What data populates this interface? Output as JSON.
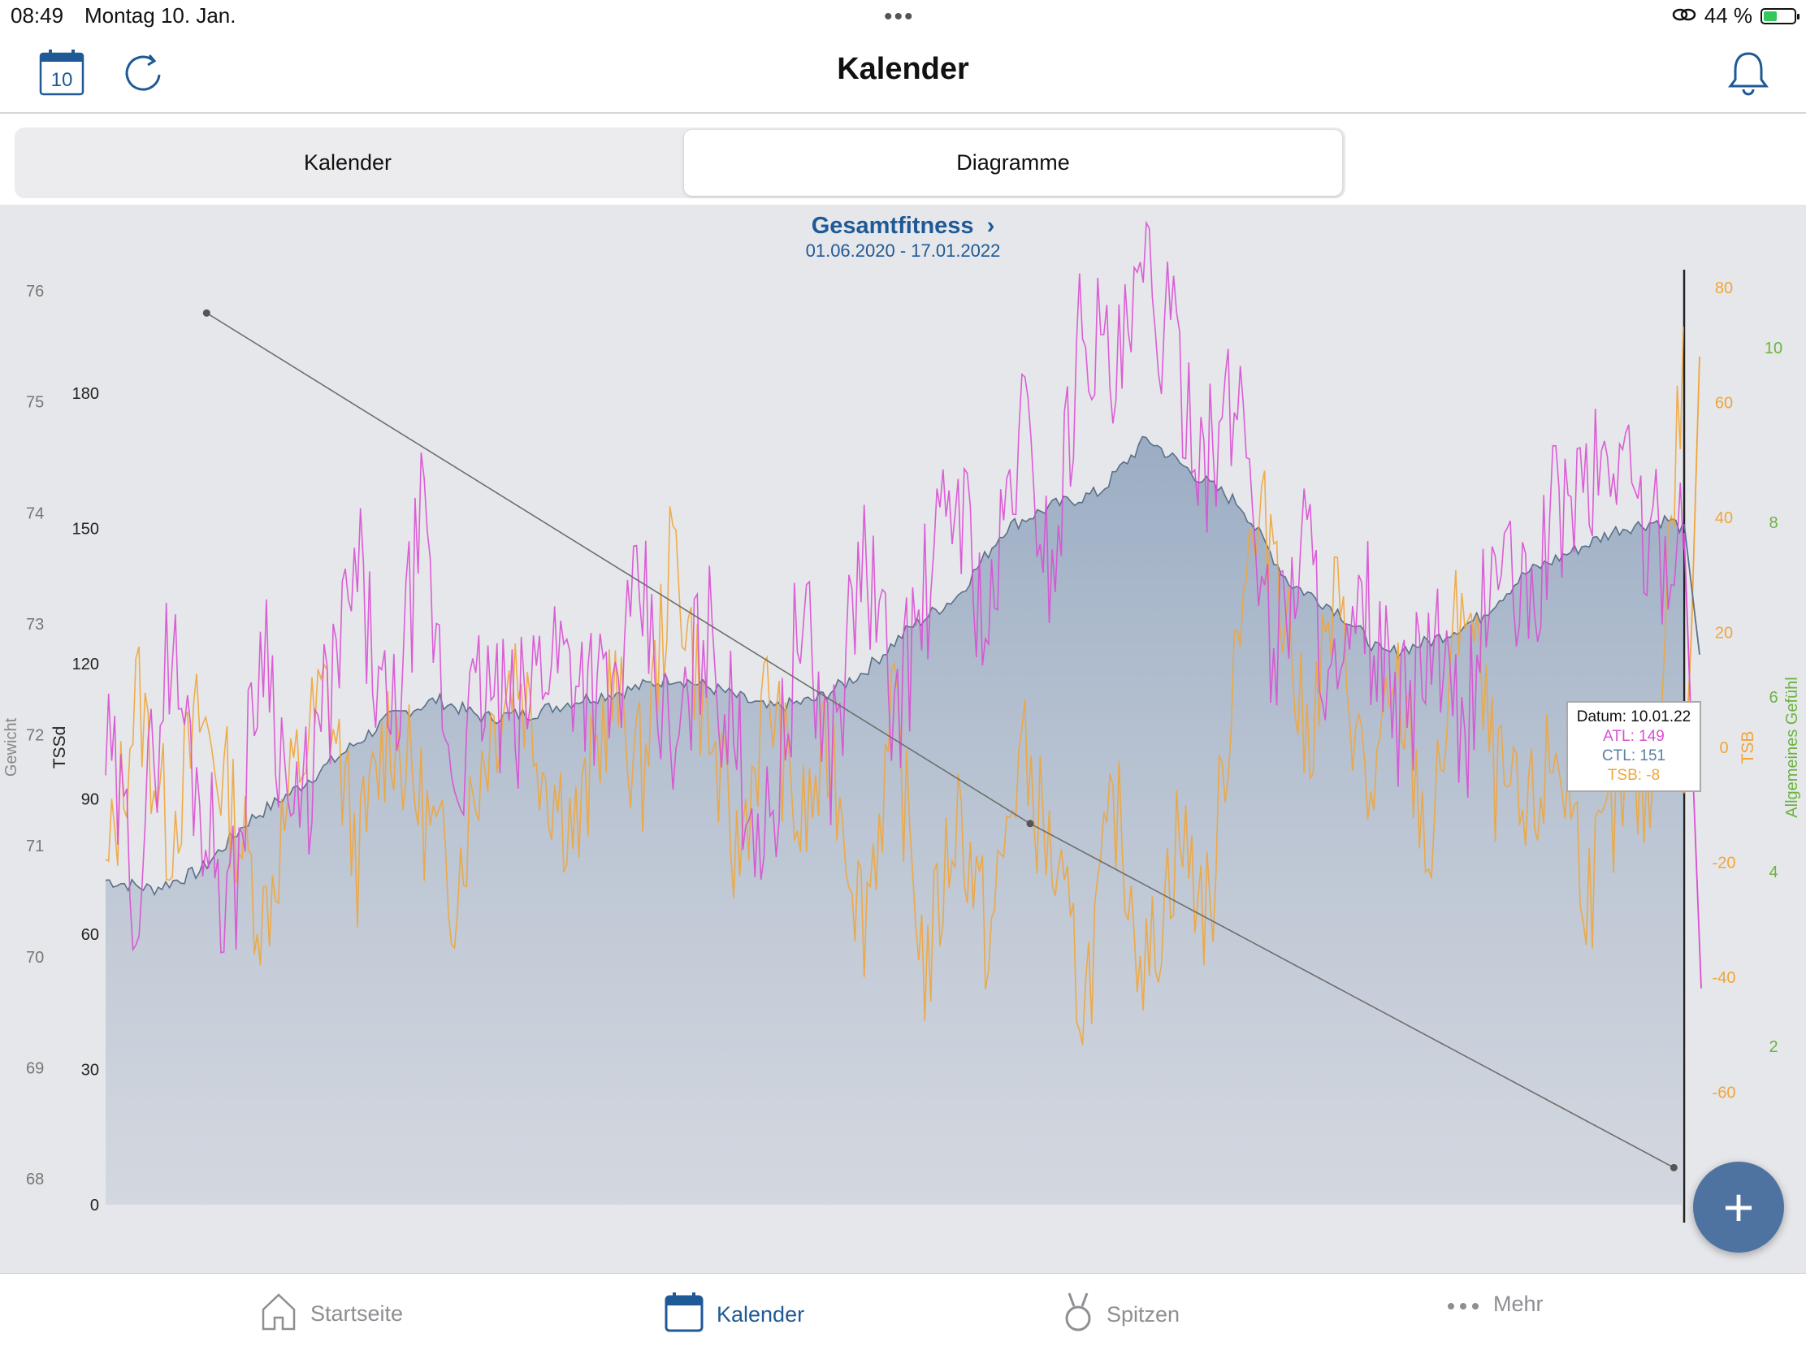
{
  "status_bar": {
    "time": "08:49",
    "date": "Montag 10. Jan.",
    "battery_text": "44 %",
    "battery_level": 0.44
  },
  "nav": {
    "title": "Kalender",
    "calendar_day": "10"
  },
  "segments": {
    "left": "Kalender",
    "right": "Diagramme",
    "selected": "Diagramme"
  },
  "chart_header": {
    "title": "Gesamtfitness",
    "date_range": "01.06.2020 - 17.01.2022"
  },
  "tooltip": {
    "date": "Datum: 10.01.22",
    "atl": "ATL: 149",
    "ctl": "CTL: 151",
    "tsb": "TSB: -8"
  },
  "fab": {
    "label": "+"
  },
  "tabs": [
    {
      "label": "Startseite",
      "icon": "home-icon"
    },
    {
      "label": "Kalender",
      "icon": "calendar-icon"
    },
    {
      "label": "Spitzen",
      "icon": "medal-icon"
    },
    {
      "label": "Mehr",
      "icon": "more-icon"
    }
  ],
  "colors": {
    "accent": "#1f5996",
    "atl": "#d94fd4",
    "ctl": "#5a7ea3",
    "tsb": "#f0a53a",
    "feeling": "#6bb33f",
    "weight": "#777777"
  },
  "chart_data": {
    "type": "line",
    "title": "Gesamtfitness",
    "subtitle": "01.06.2020 - 17.01.2022",
    "axes": {
      "weight": {
        "label": "Gewicht",
        "ticks": [
          "76",
          "75",
          "74",
          "73",
          "72",
          "71",
          "70",
          "69",
          "68"
        ],
        "range": [
          68,
          76
        ]
      },
      "tssd": {
        "label": "TSSd",
        "ticks": [
          "180",
          "150",
          "120",
          "90",
          "60",
          "30",
          "0"
        ],
        "range": [
          0,
          200
        ]
      },
      "tsb": {
        "label": "TSB",
        "ticks": [
          "80",
          "60",
          "40",
          "20",
          "0",
          "-20",
          "-40",
          "-60"
        ],
        "range": [
          -74,
          82
        ]
      },
      "feeling": {
        "label": "Allgemeines Gefühl",
        "ticks": [
          "10",
          "8",
          "6",
          "4",
          "2"
        ],
        "range": [
          0,
          10.7
        ]
      }
    },
    "x_range": [
      "01.06.2020",
      "17.01.2022"
    ],
    "series": [
      {
        "name": "CTL",
        "axis": "tssd",
        "style": "area",
        "x_frac": [
          0,
          0.03,
          0.06,
          0.09,
          0.12,
          0.15,
          0.18,
          0.21,
          0.24,
          0.27,
          0.3,
          0.33,
          0.36,
          0.39,
          0.42,
          0.45,
          0.48,
          0.51,
          0.54,
          0.57,
          0.6,
          0.63,
          0.66,
          0.69,
          0.72,
          0.75,
          0.78,
          0.81,
          0.84,
          0.87,
          0.9,
          0.93,
          0.96,
          0.99,
          1.0
        ],
        "values": [
          72,
          70,
          74,
          85,
          92,
          100,
          108,
          112,
          108,
          109,
          112,
          114,
          117,
          114,
          110,
          112,
          118,
          128,
          135,
          150,
          155,
          158,
          170,
          162,
          155,
          138,
          132,
          122,
          125,
          130,
          140,
          145,
          150,
          152,
          150
        ]
      },
      {
        "name": "ATL",
        "axis": "tssd",
        "x_frac": [
          0,
          0.02,
          0.04,
          0.06,
          0.08,
          0.1,
          0.12,
          0.14,
          0.16,
          0.18,
          0.2,
          0.22,
          0.24,
          0.26,
          0.28,
          0.3,
          0.32,
          0.34,
          0.36,
          0.38,
          0.4,
          0.42,
          0.44,
          0.46,
          0.48,
          0.5,
          0.52,
          0.54,
          0.56,
          0.58,
          0.6,
          0.62,
          0.64,
          0.66,
          0.68,
          0.7,
          0.72,
          0.74,
          0.76,
          0.78,
          0.8,
          0.82,
          0.84,
          0.86,
          0.88,
          0.9,
          0.92,
          0.94,
          0.96,
          0.98,
          1.0
        ],
        "values": [
          100,
          70,
          125,
          90,
          65,
          130,
          80,
          110,
          140,
          100,
          150,
          95,
          115,
          105,
          125,
          120,
          110,
          135,
          95,
          130,
          100,
          80,
          130,
          100,
          145,
          110,
          135,
          160,
          125,
          175,
          140,
          200,
          180,
          205,
          185,
          165,
          180,
          120,
          150,
          110,
          130,
          105,
          125,
          100,
          145,
          130,
          155,
          160,
          168,
          145,
          149
        ]
      },
      {
        "name": "TSB",
        "axis": "tsb",
        "x_frac": [
          0,
          0.02,
          0.04,
          0.06,
          0.08,
          0.1,
          0.12,
          0.14,
          0.16,
          0.18,
          0.2,
          0.22,
          0.24,
          0.26,
          0.28,
          0.3,
          0.32,
          0.34,
          0.36,
          0.38,
          0.4,
          0.42,
          0.44,
          0.46,
          0.48,
          0.5,
          0.52,
          0.54,
          0.56,
          0.58,
          0.6,
          0.62,
          0.64,
          0.66,
          0.68,
          0.7,
          0.72,
          0.74,
          0.76,
          0.78,
          0.8,
          0.82,
          0.84,
          0.86,
          0.88,
          0.9,
          0.92,
          0.94,
          0.96,
          0.98,
          1.0
        ],
        "values": [
          -25,
          10,
          -15,
          5,
          -10,
          -30,
          -5,
          10,
          -20,
          5,
          -10,
          -25,
          0,
          15,
          -5,
          -15,
          10,
          -5,
          35,
          5,
          -20,
          10,
          -15,
          0,
          -30,
          5,
          -40,
          -10,
          -35,
          0,
          -20,
          -45,
          -10,
          -40,
          -15,
          -30,
          30,
          40,
          0,
          25,
          -10,
          10,
          -20,
          30,
          -5,
          -15,
          0,
          -25,
          -10,
          -8,
          68
        ]
      },
      {
        "name": "Gewicht",
        "axis": "weight",
        "x_frac": [
          0.064,
          0.586,
          0.994
        ],
        "values": [
          75.8,
          71.2,
          68.1
        ]
      }
    ],
    "highlight": {
      "date": "10.01.22",
      "ATL": 149,
      "CTL": 151,
      "TSB": -8
    }
  }
}
